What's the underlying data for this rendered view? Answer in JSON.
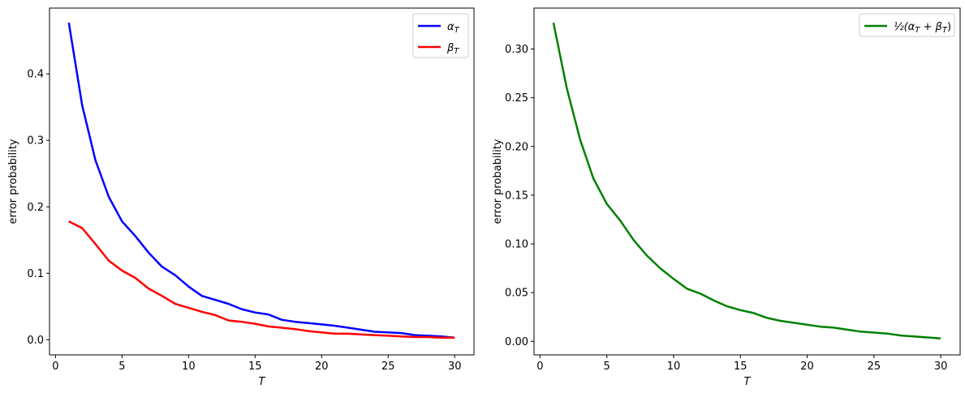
{
  "chart_data": [
    {
      "type": "line",
      "xlabel": "T",
      "ylabel": "error probability",
      "xlim": [
        -0.45,
        31.45
      ],
      "ylim": [
        -0.0228,
        0.499
      ],
      "xticks": [
        0,
        5,
        10,
        15,
        20,
        25,
        30
      ],
      "yticks": [
        0.0,
        0.1,
        0.2,
        0.3,
        0.4
      ],
      "ytick_labels": [
        "0.0",
        "0.1",
        "0.2",
        "0.3",
        "0.4"
      ],
      "grid": false,
      "legend_placement": "top-right",
      "x": [
        1,
        2,
        3,
        4,
        5,
        6,
        7,
        8,
        9,
        10,
        11,
        12,
        13,
        14,
        15,
        16,
        17,
        18,
        19,
        20,
        21,
        22,
        23,
        24,
        25,
        26,
        27,
        28,
        29,
        30
      ],
      "series": [
        {
          "name": "α_T",
          "color": "#0000ff",
          "values": [
            0.477,
            0.353,
            0.27,
            0.215,
            0.178,
            0.156,
            0.131,
            0.11,
            0.097,
            0.08,
            0.066,
            0.06,
            0.054,
            0.046,
            0.041,
            0.038,
            0.03,
            0.027,
            0.025,
            0.023,
            0.021,
            0.018,
            0.015,
            0.012,
            0.011,
            0.01,
            0.007,
            0.006,
            0.005,
            0.003
          ]
        },
        {
          "name": "β_T",
          "color": "#ff0000",
          "values": [
            0.178,
            0.168,
            0.144,
            0.119,
            0.104,
            0.093,
            0.077,
            0.066,
            0.054,
            0.048,
            0.042,
            0.037,
            0.029,
            0.027,
            0.024,
            0.02,
            0.018,
            0.016,
            0.013,
            0.011,
            0.009,
            0.009,
            0.008,
            0.007,
            0.006,
            0.005,
            0.004,
            0.004,
            0.003,
            0.003
          ]
        }
      ]
    },
    {
      "type": "line",
      "xlabel": "T",
      "ylabel": "error probability",
      "xlim": [
        -0.45,
        31.45
      ],
      "ylim": [
        -0.0139,
        0.342
      ],
      "xticks": [
        0,
        5,
        10,
        15,
        20,
        25,
        30
      ],
      "yticks": [
        0.0,
        0.05,
        0.1,
        0.15,
        0.2,
        0.25,
        0.3
      ],
      "ytick_labels": [
        "0.00",
        "0.05",
        "0.10",
        "0.15",
        "0.20",
        "0.25",
        "0.30"
      ],
      "grid": false,
      "legend_placement": "top-right",
      "x": [
        1,
        2,
        3,
        4,
        5,
        6,
        7,
        8,
        9,
        10,
        11,
        12,
        13,
        14,
        15,
        16,
        17,
        18,
        19,
        20,
        21,
        22,
        23,
        24,
        25,
        26,
        27,
        28,
        29,
        30
      ],
      "series": [
        {
          "name": "½(α_T + β_T)",
          "color": "#008000",
          "values": [
            0.327,
            0.26,
            0.207,
            0.167,
            0.141,
            0.124,
            0.104,
            0.088,
            0.075,
            0.064,
            0.054,
            0.049,
            0.042,
            0.036,
            0.032,
            0.029,
            0.024,
            0.021,
            0.019,
            0.017,
            0.015,
            0.014,
            0.012,
            0.01,
            0.009,
            0.008,
            0.006,
            0.005,
            0.004,
            0.003
          ]
        }
      ]
    }
  ]
}
